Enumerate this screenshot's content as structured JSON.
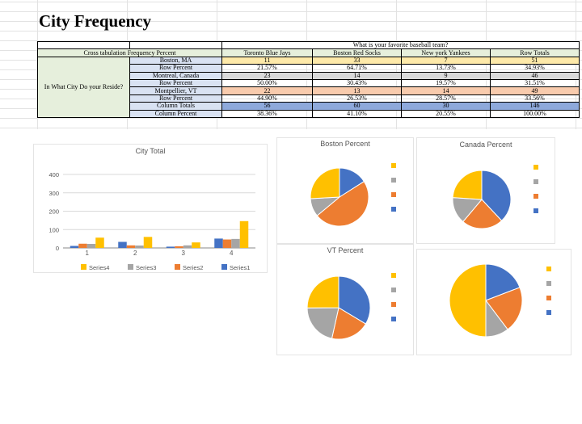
{
  "title": "City Frequency",
  "table": {
    "question": "What is your favorite baseball team?",
    "corner_label": "Cross tabulation Frequency Percent",
    "row_group_label": "In What City Do your Reside?",
    "columns": [
      "Toronto Blue Jays",
      "Boston Red Socks",
      "New york Yankees",
      "Row Totals"
    ],
    "rows": [
      {
        "label": "Boston, MA",
        "values": [
          "11",
          "33",
          "7",
          "51"
        ],
        "tone": "yellow"
      },
      {
        "label": "Row Percent",
        "values": [
          "21.57%",
          "64.71%",
          "13.73%",
          "34.93%"
        ],
        "tone": "white"
      },
      {
        "label": "Montreal, Canada",
        "values": [
          "23",
          "14",
          "9",
          "46"
        ],
        "tone": "gray"
      },
      {
        "label": "Row Percent",
        "values": [
          "50.00%",
          "30.43%",
          "19.57%",
          "31.51%"
        ],
        "tone": "white"
      },
      {
        "label": "Montpellier, VT",
        "values": [
          "22",
          "13",
          "14",
          "49"
        ],
        "tone": "orange"
      },
      {
        "label": "Row Percent",
        "values": [
          "44.90%",
          "26.53%",
          "28.57%",
          "33.56%"
        ],
        "tone": "white"
      },
      {
        "label": "Column Totals",
        "values": [
          "56",
          "60",
          "30",
          "146"
        ],
        "tone": "blue"
      },
      {
        "label": "Column Percent",
        "values": [
          "38.36%",
          "41.10%",
          "20.55%",
          "100.00%"
        ],
        "tone": "white"
      }
    ]
  },
  "colors": {
    "series1": "#4472c4",
    "series2": "#ed7d31",
    "series3": "#a5a5a5",
    "series4": "#ffc000"
  },
  "chart_data": [
    {
      "type": "bar",
      "title": "City Total",
      "categories": [
        "1",
        "2",
        "3",
        "4"
      ],
      "ylim": [
        0,
        400
      ],
      "yticks": [
        "0",
        "100",
        "200",
        "300",
        "400"
      ],
      "legend": "bottom",
      "series": [
        {
          "name": "Series1",
          "values": [
            11,
            33,
            7,
            51
          ]
        },
        {
          "name": "Series2",
          "values": [
            23,
            14,
            9,
            46
          ]
        },
        {
          "name": "Series3",
          "values": [
            22,
            13,
            14,
            49
          ]
        },
        {
          "name": "Series4",
          "values": [
            56,
            60,
            30,
            146
          ]
        }
      ]
    },
    {
      "type": "pie",
      "title": "Boston Percent",
      "values": [
        21.57,
        64.71,
        13.73,
        34.93
      ]
    },
    {
      "type": "pie",
      "title": "Canada Percent",
      "values": [
        50.0,
        30.43,
        19.57,
        31.51
      ]
    },
    {
      "type": "pie",
      "title": "VT Percent",
      "values": [
        44.9,
        26.53,
        28.57,
        33.56
      ]
    },
    {
      "type": "pie",
      "title": "",
      "values": [
        38.36,
        41.1,
        20.55,
        100.0
      ]
    }
  ]
}
